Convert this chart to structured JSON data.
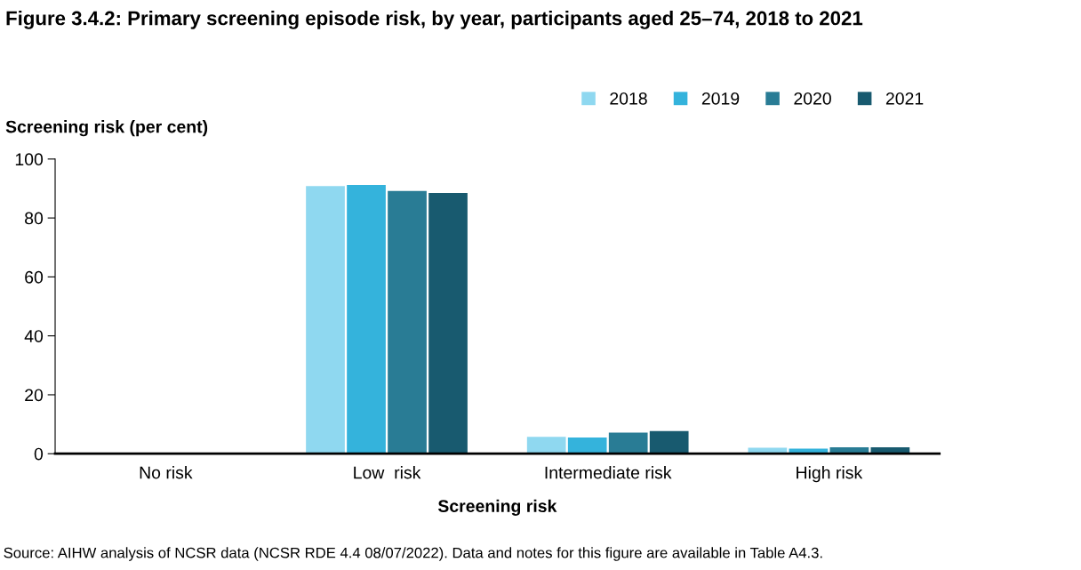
{
  "chart_data": {
    "type": "bar",
    "title": "Figure 3.4.2: Primary screening episode risk, by year, participants aged 25–74, 2018 to 2021",
    "xlabel": "Screening risk",
    "ylabel": "Screening risk (per cent)",
    "categories": [
      "No risk",
      "Low  risk",
      "Intermediate risk",
      "High risk"
    ],
    "series": [
      {
        "name": "2018",
        "color": "#8fd8f0",
        "values": [
          0,
          90.8,
          5.7,
          2.0
        ]
      },
      {
        "name": "2019",
        "color": "#34b3dc",
        "values": [
          0,
          91.2,
          5.5,
          1.7
        ]
      },
      {
        "name": "2020",
        "color": "#297c95",
        "values": [
          0,
          89.2,
          7.2,
          2.2
        ]
      },
      {
        "name": "2021",
        "color": "#185a6f",
        "values": [
          0,
          88.5,
          7.7,
          2.2
        ]
      }
    ],
    "ylim": [
      0,
      100
    ],
    "yticks": [
      0,
      20,
      40,
      60,
      80,
      100
    ],
    "grid": false,
    "legend": "top right",
    "annotations": [
      "Source: AIHW analysis of NCSR data (NCSR RDE 4.4 08/07/2022). Data and notes for this figure are available in Table A4.3."
    ]
  }
}
